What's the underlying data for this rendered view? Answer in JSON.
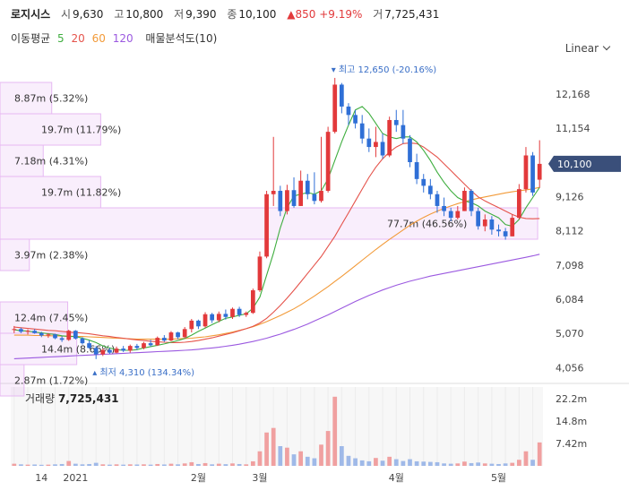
{
  "header": {
    "stock_name": "로지시스",
    "open_label": "시",
    "open": "9,630",
    "high_label": "고",
    "high": "10,800",
    "low_label": "저",
    "low": "9,390",
    "close_label": "종",
    "close": "10,100",
    "change": "▲850",
    "change_pct": "+9.19%",
    "volume_label": "거",
    "volume": "7,725,431"
  },
  "indicators": {
    "ma_label": "이동평균",
    "ma": [
      {
        "period": "5",
        "color": "#3fae3f"
      },
      {
        "period": "20",
        "color": "#e5534b"
      },
      {
        "period": "60",
        "color": "#f29a38"
      },
      {
        "period": "120",
        "color": "#9b59e0"
      }
    ],
    "vp_label": "매물분석도(10)"
  },
  "scale_button": "Linear",
  "price_axis": [
    "12,168",
    "11,154",
    "10,140",
    "9,126",
    "8,112",
    "7,098",
    "6,084",
    "5,070",
    "4,056"
  ],
  "current_price_tag": "10,100",
  "annotations": {
    "high": "최고 12,650 (-20.16%)",
    "low": "최저 4,310 (134.34%)"
  },
  "volume_profile": [
    {
      "label": "8.87m (5.32%)",
      "frac": 0.077
    },
    {
      "label": "19.7m (11.79%)",
      "frac": 0.169
    },
    {
      "label": "7.18m (4.31%)",
      "frac": 0.061
    },
    {
      "label": "19.7m (11.82%)",
      "frac": 0.169
    },
    {
      "label": "77.7m (46.56%)",
      "frac": 0.99
    },
    {
      "label": "3.97m (2.38%)",
      "frac": 0.035
    },
    {
      "label": "",
      "frac": 0
    },
    {
      "label": "12.4m (7.45%)",
      "frac": 0.107
    },
    {
      "label": "14.4m (8.66%)",
      "frac": 0.124
    },
    {
      "label": "2.87m (1.72%)",
      "frac": 0.025
    }
  ],
  "volume_title": "거래량",
  "volume_value": "7,725,431",
  "volume_axis": [
    "22.2m",
    "14.8m",
    "7.42m"
  ],
  "x_axis": [
    "14",
    "2021",
    "2월",
    "3월",
    "4월",
    "5월"
  ],
  "chart_data": {
    "type": "candlestick",
    "y_range": [
      3800,
      13100
    ],
    "volume_range": [
      0,
      26000000
    ],
    "candles": [
      [
        5180,
        5290,
        5080,
        5200
      ],
      [
        5200,
        5240,
        5080,
        5120
      ],
      [
        5120,
        5190,
        5040,
        5150
      ],
      [
        5150,
        5200,
        5060,
        5080
      ],
      [
        5080,
        5120,
        4960,
        5010
      ],
      [
        5010,
        5080,
        4940,
        5040
      ],
      [
        5040,
        5060,
        4900,
        4930
      ],
      [
        4930,
        4990,
        4820,
        4880
      ],
      [
        4880,
        5180,
        4850,
        5150
      ],
      [
        5150,
        5170,
        4890,
        4920
      ],
      [
        4920,
        4960,
        4740,
        4780
      ],
      [
        4780,
        4860,
        4620,
        4640
      ],
      [
        4640,
        4700,
        4310,
        4450
      ],
      [
        4450,
        4620,
        4400,
        4580
      ],
      [
        4580,
        4640,
        4460,
        4500
      ],
      [
        4500,
        4680,
        4480,
        4620
      ],
      [
        4620,
        4700,
        4520,
        4560
      ],
      [
        4560,
        4740,
        4500,
        4700
      ],
      [
        4700,
        4760,
        4580,
        4640
      ],
      [
        4640,
        4820,
        4600,
        4780
      ],
      [
        4780,
        4880,
        4680,
        4720
      ],
      [
        4720,
        4980,
        4700,
        4940
      ],
      [
        4940,
        5020,
        4820,
        4860
      ],
      [
        4860,
        5140,
        4840,
        5100
      ],
      [
        5100,
        5120,
        4900,
        4960
      ],
      [
        4960,
        5260,
        4920,
        5200
      ],
      [
        5200,
        5500,
        5100,
        5450
      ],
      [
        5450,
        5480,
        5200,
        5280
      ],
      [
        5280,
        5700,
        5240,
        5640
      ],
      [
        5640,
        5680,
        5380,
        5460
      ],
      [
        5460,
        5720,
        5400,
        5650
      ],
      [
        5650,
        5780,
        5480,
        5560
      ],
      [
        5560,
        5840,
        5500,
        5800
      ],
      [
        5800,
        5860,
        5560,
        5620
      ],
      [
        5620,
        5720,
        5560,
        5680
      ],
      [
        5680,
        6400,
        5650,
        6350
      ],
      [
        6350,
        7500,
        6300,
        7350
      ],
      [
        7350,
        9300,
        7300,
        9200
      ],
      [
        9200,
        10900,
        8850,
        9300
      ],
      [
        9300,
        9450,
        8550,
        8700
      ],
      [
        8700,
        9480,
        8600,
        9320
      ],
      [
        9320,
        9700,
        8800,
        8850
      ],
      [
        8850,
        9900,
        8850,
        9600
      ],
      [
        9600,
        9800,
        9050,
        9200
      ],
      [
        9200,
        9850,
        8900,
        9000
      ],
      [
        9000,
        10900,
        8950,
        9300
      ],
      [
        9300,
        11200,
        9250,
        11050
      ],
      [
        11050,
        12650,
        11000,
        12450
      ],
      [
        12450,
        12500,
        11600,
        11800
      ],
      [
        11800,
        11900,
        11250,
        11550
      ],
      [
        11550,
        11700,
        11150,
        11300
      ],
      [
        11300,
        11550,
        10700,
        10850
      ],
      [
        10850,
        11150,
        10450,
        10600
      ],
      [
        10600,
        11200,
        10300,
        10750
      ],
      [
        10750,
        11000,
        10250,
        10350
      ],
      [
        10350,
        11500,
        10300,
        11400
      ],
      [
        11400,
        11700,
        11050,
        11250
      ],
      [
        11250,
        11700,
        10700,
        10850
      ],
      [
        10850,
        10950,
        10000,
        10150
      ],
      [
        10150,
        10400,
        9500,
        9650
      ],
      [
        9650,
        9800,
        9250,
        9450
      ],
      [
        9450,
        9650,
        9050,
        9200
      ],
      [
        9200,
        9300,
        8650,
        8850
      ],
      [
        8850,
        9100,
        8550,
        8700
      ],
      [
        8700,
        8800,
        8400,
        8500
      ],
      [
        8500,
        8850,
        8450,
        8700
      ],
      [
        8700,
        9400,
        8700,
        9300
      ],
      [
        9300,
        9350,
        8550,
        8700
      ],
      [
        8700,
        8800,
        8150,
        8250
      ],
      [
        8250,
        8600,
        8100,
        8450
      ],
      [
        8450,
        8550,
        8000,
        8150
      ],
      [
        8150,
        8300,
        7950,
        8100
      ],
      [
        8100,
        8200,
        7850,
        7950
      ],
      [
        7950,
        8600,
        7950,
        8500
      ],
      [
        8500,
        9500,
        8450,
        9350
      ],
      [
        9350,
        10600,
        9250,
        10350
      ],
      [
        10350,
        10450,
        9150,
        9250
      ],
      [
        9630,
        10800,
        9390,
        10100
      ]
    ],
    "ma5": [
      5180,
      5150,
      5140,
      5110,
      5090,
      5060,
      5040,
      5000,
      4980,
      4980,
      4930,
      4870,
      4800,
      4700,
      4640,
      4590,
      4570,
      4570,
      4590,
      4640,
      4680,
      4720,
      4760,
      4810,
      4860,
      4920,
      5020,
      5130,
      5230,
      5330,
      5430,
      5520,
      5560,
      5610,
      5650,
      5820,
      6150,
      6800,
      7450,
      8200,
      8800,
      9150,
      9200,
      9250,
      9200,
      9300,
      9650,
      10200,
      10750,
      11250,
      11700,
      11800,
      11600,
      11300,
      11000,
      10900,
      10850,
      10900,
      10900,
      10750,
      10500,
      10200,
      9850,
      9550,
      9300,
      9100,
      9000,
      8950,
      8850,
      8700,
      8600,
      8500,
      8300,
      8250,
      8450,
      8800,
      9100,
      9400
    ],
    "ma20": [
      5260,
      5240,
      5220,
      5200,
      5180,
      5160,
      5150,
      5130,
      5110,
      5100,
      5080,
      5060,
      5030,
      5000,
      4980,
      4950,
      4930,
      4900,
      4880,
      4860,
      4840,
      4820,
      4810,
      4800,
      4800,
      4810,
      4830,
      4860,
      4900,
      4940,
      4990,
      5040,
      5090,
      5150,
      5210,
      5280,
      5380,
      5520,
      5700,
      5900,
      6120,
      6350,
      6600,
      6850,
      7100,
      7350,
      7650,
      7950,
      8300,
      8650,
      9000,
      9350,
      9700,
      10000,
      10250,
      10450,
      10600,
      10700,
      10720,
      10700,
      10600,
      10450,
      10300,
      10100,
      9900,
      9700,
      9500,
      9300,
      9120,
      9000,
      8900,
      8800,
      8700,
      8600,
      8520,
      8480,
      8470,
      8480
    ],
    "ma60": [
      5020,
      5020,
      5020,
      5010,
      5010,
      5000,
      5000,
      4990,
      4990,
      4980,
      4980,
      4970,
      4960,
      4950,
      4940,
      4930,
      4920,
      4910,
      4900,
      4900,
      4900,
      4900,
      4900,
      4900,
      4910,
      4920,
      4930,
      4950,
      4970,
      5000,
      5030,
      5070,
      5110,
      5160,
      5210,
      5270,
      5340,
      5420,
      5510,
      5600,
      5700,
      5800,
      5920,
      6050,
      6180,
      6320,
      6460,
      6610,
      6760,
      6920,
      7080,
      7240,
      7400,
      7560,
      7710,
      7860,
      8000,
      8140,
      8280,
      8400,
      8510,
      8610,
      8700,
      8780,
      8850,
      8920,
      8980,
      9030,
      9080,
      9120,
      9160,
      9200,
      9240,
      9270,
      9300,
      9330,
      9360,
      9400
    ],
    "ma120": [
      4320,
      4330,
      4340,
      4350,
      4360,
      4370,
      4380,
      4390,
      4400,
      4410,
      4420,
      4430,
      4440,
      4450,
      4460,
      4470,
      4480,
      4490,
      4500,
      4510,
      4520,
      4530,
      4540,
      4550,
      4560,
      4570,
      4580,
      4600,
      4620,
      4640,
      4660,
      4690,
      4720,
      4750,
      4790,
      4830,
      4880,
      4930,
      4990,
      5050,
      5120,
      5190,
      5270,
      5350,
      5440,
      5530,
      5620,
      5720,
      5820,
      5920,
      6020,
      6110,
      6200,
      6280,
      6360,
      6430,
      6500,
      6560,
      6620,
      6670,
      6720,
      6770,
      6810,
      6850,
      6890,
      6930,
      6970,
      7010,
      7050,
      7090,
      7130,
      7170,
      7210,
      7250,
      7290,
      7330,
      7370,
      7420
    ],
    "volumes": [
      700000,
      500000,
      400000,
      450000,
      350000,
      400000,
      500000,
      600000,
      1600000,
      700000,
      500000,
      600000,
      1000000,
      500000,
      400000,
      500000,
      400000,
      500000,
      450000,
      500000,
      400000,
      600000,
      450000,
      700000,
      500000,
      800000,
      1200000,
      600000,
      900000,
      500000,
      700000,
      550000,
      800000,
      600000,
      500000,
      1500000,
      4800000,
      11000000,
      12500000,
      6500000,
      6000000,
      3800000,
      4800000,
      3000000,
      2500000,
      7000000,
      11500000,
      22800000,
      6500000,
      3300000,
      2500000,
      1800000,
      1500000,
      2600000,
      1700000,
      3000000,
      2200000,
      1600000,
      2200000,
      1500000,
      1400000,
      1300000,
      1200000,
      800000,
      700000,
      800000,
      1400000,
      900000,
      1100000,
      800000,
      700000,
      600000,
      800000,
      1000000,
      2000000,
      4800000,
      2000000,
      7725431
    ]
  }
}
